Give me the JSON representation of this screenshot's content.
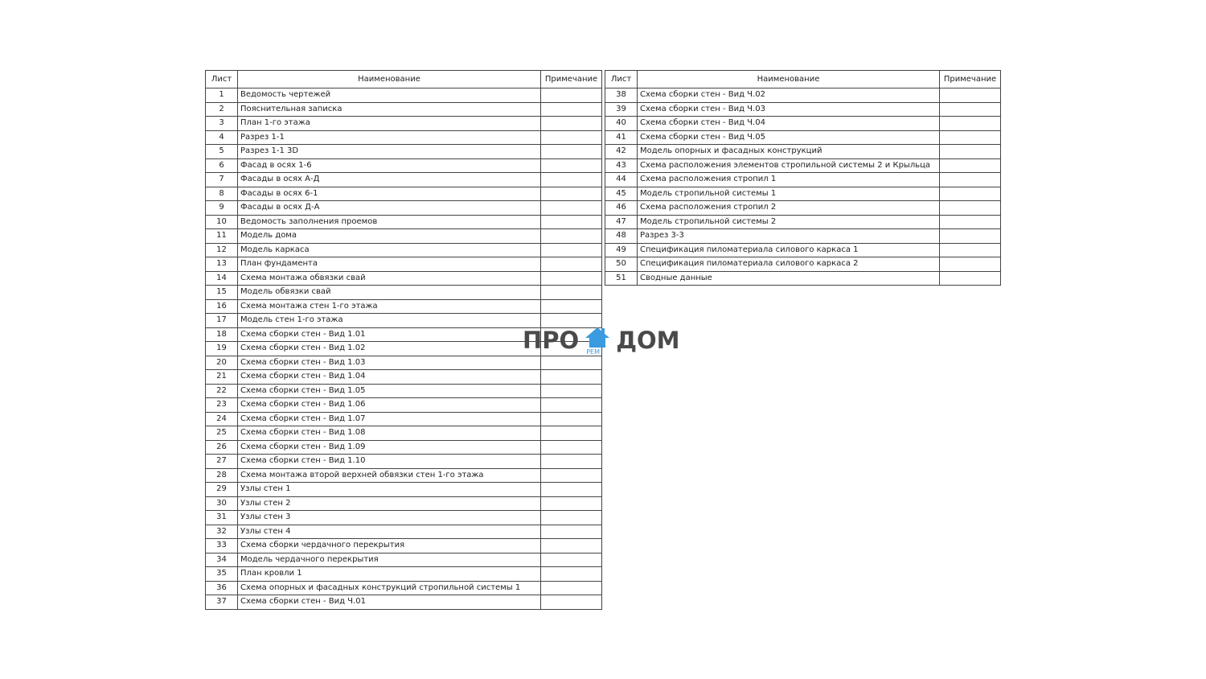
{
  "headers": {
    "sheet": "Лист",
    "name": "Наименование",
    "note": "Примечание"
  },
  "left_rows": [
    {
      "n": "1",
      "name": "Ведомость чертежей",
      "note": ""
    },
    {
      "n": "2",
      "name": "Пояснительная записка",
      "note": ""
    },
    {
      "n": "3",
      "name": "План 1-го этажа",
      "note": ""
    },
    {
      "n": "4",
      "name": "Разрез 1-1",
      "note": ""
    },
    {
      "n": "5",
      "name": "Разрез 1-1 3D",
      "note": ""
    },
    {
      "n": "6",
      "name": "Фасад в осях 1-6",
      "note": ""
    },
    {
      "n": "7",
      "name": "Фасады в осях А-Д",
      "note": ""
    },
    {
      "n": "8",
      "name": "Фасады в осях 6-1",
      "note": ""
    },
    {
      "n": "9",
      "name": "Фасады в осях Д-А",
      "note": ""
    },
    {
      "n": "10",
      "name": "Ведомость заполнения проемов",
      "note": ""
    },
    {
      "n": "11",
      "name": "Модель дома",
      "note": ""
    },
    {
      "n": "12",
      "name": "Модель каркаса",
      "note": ""
    },
    {
      "n": "13",
      "name": "План фундамента",
      "note": ""
    },
    {
      "n": "14",
      "name": "Схема монтажа обвязки свай",
      "note": ""
    },
    {
      "n": "15",
      "name": "Модель обвязки свай",
      "note": ""
    },
    {
      "n": "16",
      "name": "Схема монтажа стен 1-го этажа",
      "note": ""
    },
    {
      "n": "17",
      "name": "Модель стен 1-го этажа",
      "note": ""
    },
    {
      "n": "18",
      "name": "Схема сборки стен - Вид 1.01",
      "note": ""
    },
    {
      "n": "19",
      "name": "Схема сборки стен - Вид 1.02",
      "note": ""
    },
    {
      "n": "20",
      "name": "Схема сборки стен - Вид 1.03",
      "note": ""
    },
    {
      "n": "21",
      "name": "Схема сборки стен - Вид 1.04",
      "note": ""
    },
    {
      "n": "22",
      "name": "Схема сборки стен - Вид 1.05",
      "note": ""
    },
    {
      "n": "23",
      "name": "Схема сборки стен - Вид 1.06",
      "note": ""
    },
    {
      "n": "24",
      "name": "Схема сборки стен - Вид 1.07",
      "note": ""
    },
    {
      "n": "25",
      "name": "Схема сборки стен - Вид 1.08",
      "note": ""
    },
    {
      "n": "26",
      "name": "Схема сборки стен - Вид 1.09",
      "note": ""
    },
    {
      "n": "27",
      "name": "Схема сборки стен - Вид 1.10",
      "note": ""
    },
    {
      "n": "28",
      "name": "Схема монтажа второй верхней обвязки стен 1-го этажа",
      "note": ""
    },
    {
      "n": "29",
      "name": "Узлы стен 1",
      "note": ""
    },
    {
      "n": "30",
      "name": "Узлы стен 2",
      "note": ""
    },
    {
      "n": "31",
      "name": "Узлы стен 3",
      "note": ""
    },
    {
      "n": "32",
      "name": "Узлы стен 4",
      "note": ""
    },
    {
      "n": "33",
      "name": "Схема сборки чердачного перекрытия",
      "note": ""
    },
    {
      "n": "34",
      "name": "Модель чердачного перекрытия",
      "note": ""
    },
    {
      "n": "35",
      "name": "План кровли 1",
      "note": ""
    },
    {
      "n": "36",
      "name": "Схема опорных и фасадных конструкций стропильной системы 1",
      "note": ""
    },
    {
      "n": "37",
      "name": "Схема сборки стен - Вид Ч.01",
      "note": ""
    }
  ],
  "right_rows": [
    {
      "n": "38",
      "name": "Схема сборки стен - Вид Ч.02",
      "note": ""
    },
    {
      "n": "39",
      "name": "Схема сборки стен - Вид Ч.03",
      "note": ""
    },
    {
      "n": "40",
      "name": "Схема сборки стен - Вид Ч.04",
      "note": ""
    },
    {
      "n": "41",
      "name": "Схема сборки стен - Вид Ч.05",
      "note": ""
    },
    {
      "n": "42",
      "name": "Модель опорных и фасадных конструкций",
      "note": ""
    },
    {
      "n": "43",
      "name": "Схема расположения элементов стропильной системы 2 и Крыльца",
      "note": ""
    },
    {
      "n": "44",
      "name": "Схема расположения стропил 1",
      "note": ""
    },
    {
      "n": "45",
      "name": "Модель стропильной системы 1",
      "note": ""
    },
    {
      "n": "46",
      "name": "Схема расположения стропил 2",
      "note": ""
    },
    {
      "n": "47",
      "name": "Модель стропильной системы 2",
      "note": ""
    },
    {
      "n": "48",
      "name": "Разрез 3-3",
      "note": ""
    },
    {
      "n": "49",
      "name": "Спецификация пиломатериала силового каркаса 1",
      "note": ""
    },
    {
      "n": "50",
      "name": "Спецификация пиломатериала силового каркаса 2",
      "note": ""
    },
    {
      "n": "51",
      "name": "Сводные данные",
      "note": ""
    }
  ],
  "watermark": {
    "left": "ПРО",
    "right": "ДОМ",
    "sub": "РЕМ",
    "icon": "house-icon",
    "icon_color": "#3a9be0",
    "text_color": "#4a4a4a"
  }
}
